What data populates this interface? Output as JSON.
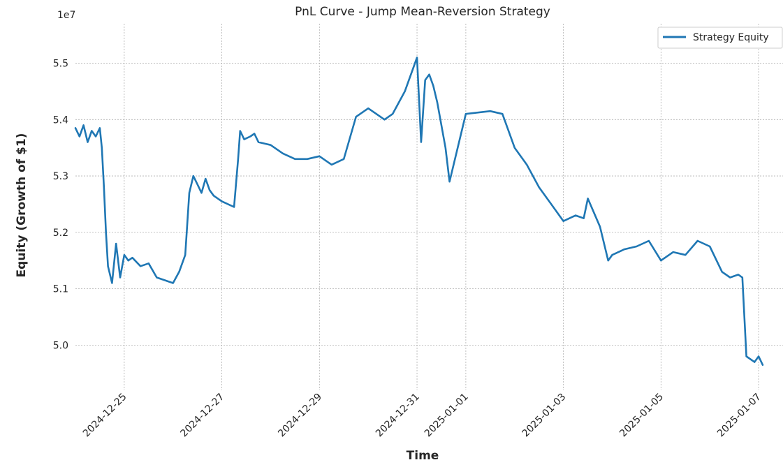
{
  "chart_data": {
    "type": "line",
    "title": "PnL Curve - Jump Mean-Reversion Strategy",
    "xlabel": "Time",
    "ylabel": "Equity (Growth of $1)",
    "y_offset_label": "1e7",
    "xlim": [
      "2024-12-24T00:00",
      "2025-01-07T12:00"
    ],
    "ylim": [
      4.92,
      5.57
    ],
    "x_ticks": [
      "2024-12-25",
      "2024-12-27",
      "2024-12-29",
      "2024-12-31",
      "2025-01-01",
      "2025-01-03",
      "2025-01-05",
      "2025-01-07"
    ],
    "y_ticks": [
      "5.0",
      "5.1",
      "5.2",
      "5.3",
      "5.4",
      "5.5"
    ],
    "y_tick_values": [
      5.0,
      5.1,
      5.2,
      5.3,
      5.4,
      5.5
    ],
    "grid": true,
    "legend_position": "top-right",
    "series": [
      {
        "name": "Strategy Equity",
        "color": "#1f77b4",
        "x": [
          "2024-12-24T00:00",
          "2024-12-24T02:00",
          "2024-12-24T04:00",
          "2024-12-24T06:00",
          "2024-12-24T08:00",
          "2024-12-24T10:00",
          "2024-12-24T12:00",
          "2024-12-24T13:00",
          "2024-12-24T14:00",
          "2024-12-24T15:00",
          "2024-12-24T16:00",
          "2024-12-24T18:00",
          "2024-12-24T20:00",
          "2024-12-24T22:00",
          "2024-12-25T00:00",
          "2024-12-25T02:00",
          "2024-12-25T04:00",
          "2024-12-25T08:00",
          "2024-12-25T12:00",
          "2024-12-25T16:00",
          "2024-12-25T20:00",
          "2024-12-26T00:00",
          "2024-12-26T03:00",
          "2024-12-26T06:00",
          "2024-12-26T08:00",
          "2024-12-26T10:00",
          "2024-12-26T12:00",
          "2024-12-26T14:00",
          "2024-12-26T16:00",
          "2024-12-26T18:00",
          "2024-12-26T20:00",
          "2024-12-27T00:00",
          "2024-12-27T06:00",
          "2024-12-27T08:00",
          "2024-12-27T09:00",
          "2024-12-27T11:00",
          "2024-12-27T14:00",
          "2024-12-27T16:00",
          "2024-12-27T18:00",
          "2024-12-28T00:00",
          "2024-12-28T06:00",
          "2024-12-28T12:00",
          "2024-12-28T18:00",
          "2024-12-29T00:00",
          "2024-12-29T06:00",
          "2024-12-29T12:00",
          "2024-12-29T18:00",
          "2024-12-30T00:00",
          "2024-12-30T04:00",
          "2024-12-30T08:00",
          "2024-12-30T12:00",
          "2024-12-30T18:00",
          "2024-12-31T00:00",
          "2024-12-31T02:00",
          "2024-12-31T04:00",
          "2024-12-31T06:00",
          "2024-12-31T08:00",
          "2024-12-31T10:00",
          "2024-12-31T14:00",
          "2024-12-31T16:00",
          "2025-01-01T00:00",
          "2025-01-01T12:00",
          "2025-01-01T18:00",
          "2025-01-02T00:00",
          "2025-01-02T06:00",
          "2025-01-02T12:00",
          "2025-01-02T18:00",
          "2025-01-03T00:00",
          "2025-01-03T06:00",
          "2025-01-03T10:00",
          "2025-01-03T12:00",
          "2025-01-03T18:00",
          "2025-01-03T22:00",
          "2025-01-04T00:00",
          "2025-01-04T06:00",
          "2025-01-04T12:00",
          "2025-01-04T18:00",
          "2025-01-05T00:00",
          "2025-01-05T06:00",
          "2025-01-05T12:00",
          "2025-01-05T18:00",
          "2025-01-06T00:00",
          "2025-01-06T06:00",
          "2025-01-06T10:00",
          "2025-01-06T14:00",
          "2025-01-06T16:00",
          "2025-01-06T18:00",
          "2025-01-06T22:00",
          "2025-01-07T00:00",
          "2025-01-07T02:00"
        ],
        "values": [
          5.385,
          5.37,
          5.39,
          5.36,
          5.38,
          5.37,
          5.385,
          5.35,
          5.28,
          5.2,
          5.14,
          5.11,
          5.18,
          5.12,
          5.16,
          5.15,
          5.155,
          5.14,
          5.145,
          5.12,
          5.115,
          5.11,
          5.13,
          5.16,
          5.27,
          5.3,
          5.285,
          5.27,
          5.295,
          5.275,
          5.265,
          5.255,
          5.245,
          5.33,
          5.38,
          5.365,
          5.37,
          5.375,
          5.36,
          5.355,
          5.34,
          5.33,
          5.33,
          5.335,
          5.32,
          5.33,
          5.405,
          5.42,
          5.41,
          5.4,
          5.41,
          5.45,
          5.51,
          5.36,
          5.47,
          5.48,
          5.46,
          5.43,
          5.35,
          5.29,
          5.41,
          5.415,
          5.41,
          5.35,
          5.32,
          5.28,
          5.25,
          5.22,
          5.23,
          5.225,
          5.26,
          5.21,
          5.15,
          5.16,
          5.17,
          5.175,
          5.185,
          5.15,
          5.165,
          5.16,
          5.185,
          5.175,
          5.13,
          5.12,
          5.125,
          5.12,
          4.98,
          4.97,
          4.98,
          4.965
        ]
      }
    ]
  }
}
